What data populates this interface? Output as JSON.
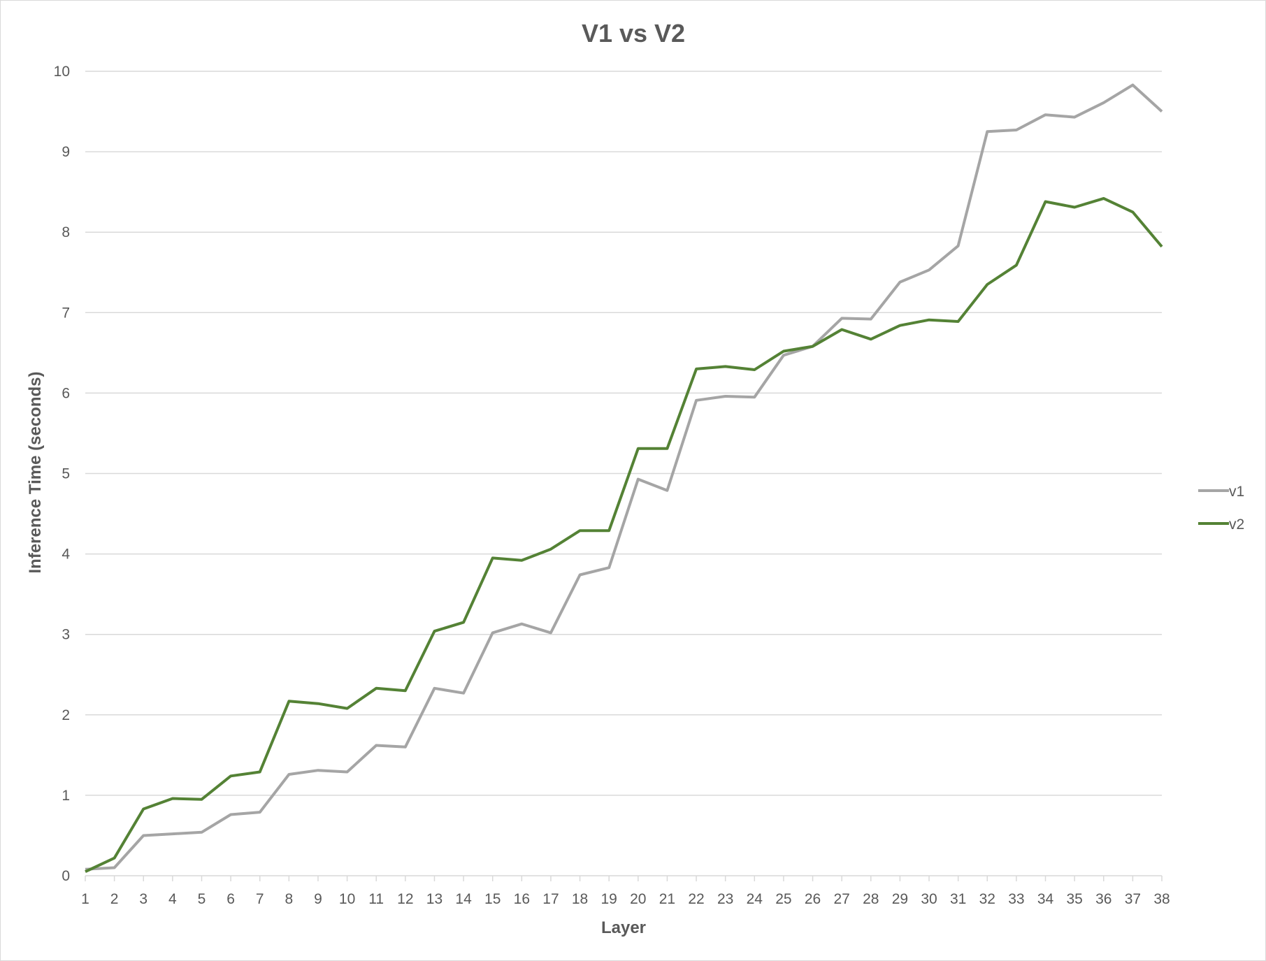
{
  "chart_data": {
    "type": "line",
    "title": "V1 vs V2",
    "xlabel": "Layer",
    "ylabel": "Inference Time (seconds)",
    "x": [
      1,
      2,
      3,
      4,
      5,
      6,
      7,
      8,
      9,
      10,
      11,
      12,
      13,
      14,
      15,
      16,
      17,
      18,
      19,
      20,
      21,
      22,
      23,
      24,
      25,
      26,
      27,
      28,
      29,
      30,
      31,
      32,
      33,
      34,
      35,
      36,
      37,
      38
    ],
    "ylim": [
      0,
      10
    ],
    "yticks": [
      0,
      1,
      2,
      3,
      4,
      5,
      6,
      7,
      8,
      9,
      10
    ],
    "grid": true,
    "legend_position": "right",
    "series": [
      {
        "name": "v1",
        "color": "#a5a5a5",
        "values": [
          0.08,
          0.1,
          0.5,
          0.52,
          0.54,
          0.76,
          0.79,
          1.26,
          1.31,
          1.29,
          1.62,
          1.6,
          2.33,
          2.27,
          3.02,
          3.13,
          3.02,
          3.74,
          3.83,
          4.93,
          4.79,
          5.91,
          5.96,
          5.95,
          6.47,
          6.58,
          6.93,
          6.92,
          7.38,
          7.53,
          7.83,
          9.25,
          9.27,
          9.46,
          9.43,
          9.61,
          9.83,
          9.5
        ]
      },
      {
        "name": "v2",
        "color": "#548235",
        "values": [
          0.05,
          0.22,
          0.83,
          0.96,
          0.95,
          1.24,
          1.29,
          2.17,
          2.14,
          2.08,
          2.33,
          2.3,
          3.04,
          3.15,
          3.95,
          3.92,
          4.06,
          4.29,
          4.29,
          5.31,
          5.31,
          6.3,
          6.33,
          6.29,
          6.52,
          6.58,
          6.79,
          6.67,
          6.84,
          6.91,
          6.89,
          7.35,
          7.59,
          8.38,
          8.31,
          8.42,
          8.25,
          7.82
        ]
      }
    ]
  }
}
